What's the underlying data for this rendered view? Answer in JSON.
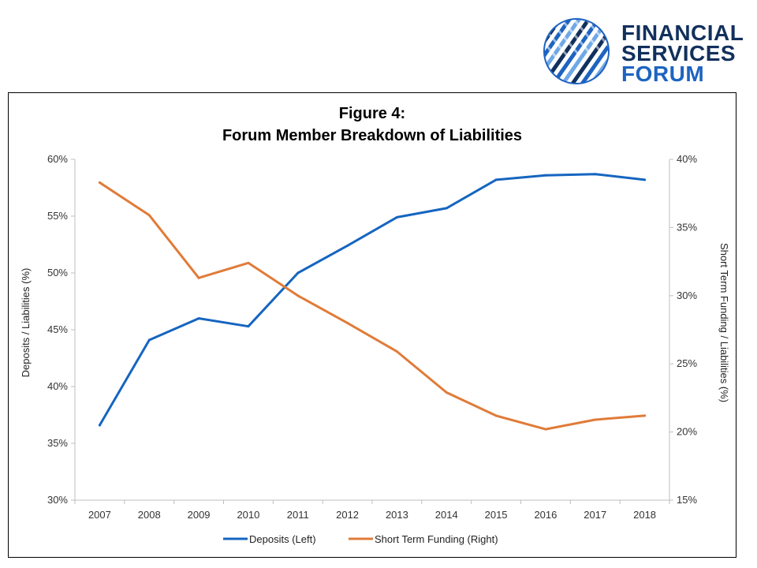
{
  "brand": {
    "name": "Financial Services Forum",
    "line1": "FINANCIAL",
    "line2": "SERVICES",
    "line3": "FORUM",
    "colors": {
      "dark": "#12305c",
      "accent": "#1e63c0",
      "light": "#6fa8e6"
    },
    "icon": "globe-logo-icon"
  },
  "chart_data": {
    "type": "line",
    "title_line1": "Figure 4:",
    "title_line2": "Forum Member Breakdown of Liabilities",
    "xlabel": "",
    "ylabel_left": "Deposits / Liabilities (%)",
    "ylabel_right": "Short Term Funding / Liabilities (%)",
    "categories": [
      "2007",
      "2008",
      "2009",
      "2010",
      "2011",
      "2012",
      "2013",
      "2014",
      "2015",
      "2016",
      "2017",
      "2018"
    ],
    "left_axis": {
      "min": 30,
      "max": 60,
      "step": 5,
      "ticks": [
        "30%",
        "35%",
        "40%",
        "45%",
        "50%",
        "55%",
        "60%"
      ]
    },
    "right_axis": {
      "min": 15,
      "max": 40,
      "step": 5,
      "ticks": [
        "15%",
        "20%",
        "25%",
        "30%",
        "35%",
        "40%"
      ]
    },
    "series": [
      {
        "name": "Deposits (Left)",
        "axis": "left",
        "color": "#1565c0",
        "values": [
          36.6,
          44.1,
          46.0,
          45.3,
          50.0,
          52.4,
          54.9,
          55.7,
          58.2,
          58.6,
          58.7,
          58.2
        ]
      },
      {
        "name": "Short Term Funding (Right)",
        "axis": "right",
        "color": "#e07b39",
        "values": [
          38.3,
          35.9,
          31.3,
          32.4,
          30.0,
          28.0,
          25.9,
          22.9,
          21.2,
          20.2,
          20.9,
          21.2
        ]
      }
    ],
    "grid": false,
    "legend_position": "bottom-center"
  }
}
